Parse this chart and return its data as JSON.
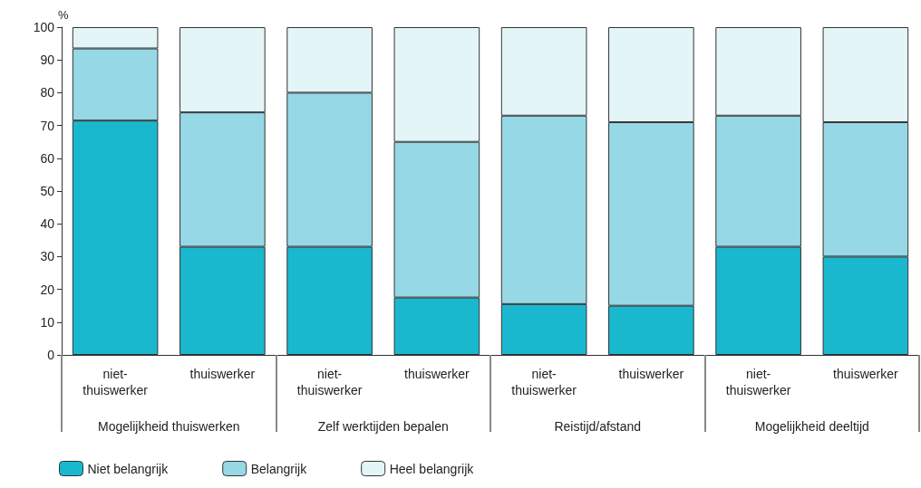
{
  "chart_data": {
    "type": "bar",
    "stacked": true,
    "ylabel": "%",
    "categories": [
      "niet-thuiswerker",
      "thuiswerker",
      "niet-thuiswerker",
      "thuiswerker",
      "niet-thuiswerker",
      "thuiswerker",
      "niet-thuiswerker",
      "thuiswerker"
    ],
    "annotations": [
      "Mogelijkheid thuiswerken",
      "Zelf werktijden bepalen",
      "Reistijd/afstand",
      "Mogelijkheid deeltijd"
    ],
    "series": [
      {
        "name": "Niet belangrijk",
        "color": "#1ab8cf",
        "values": [
          71.5,
          33,
          33,
          17.5,
          15.5,
          15,
          33,
          30
        ]
      },
      {
        "name": "Belangrijk",
        "color": "#96d8e6",
        "values": [
          22,
          41,
          47,
          47.5,
          57.5,
          56,
          40,
          41
        ]
      },
      {
        "name": "Heel belangrijk",
        "color": "#e4f5f8",
        "values": [
          6.5,
          26,
          20,
          35,
          27,
          29,
          27,
          29
        ]
      }
    ],
    "ylim": [
      0,
      100
    ],
    "yticks": [
      0,
      10,
      20,
      30,
      40,
      50,
      60,
      70,
      80,
      90,
      100
    ],
    "grid": false,
    "legend": "bottom left"
  }
}
